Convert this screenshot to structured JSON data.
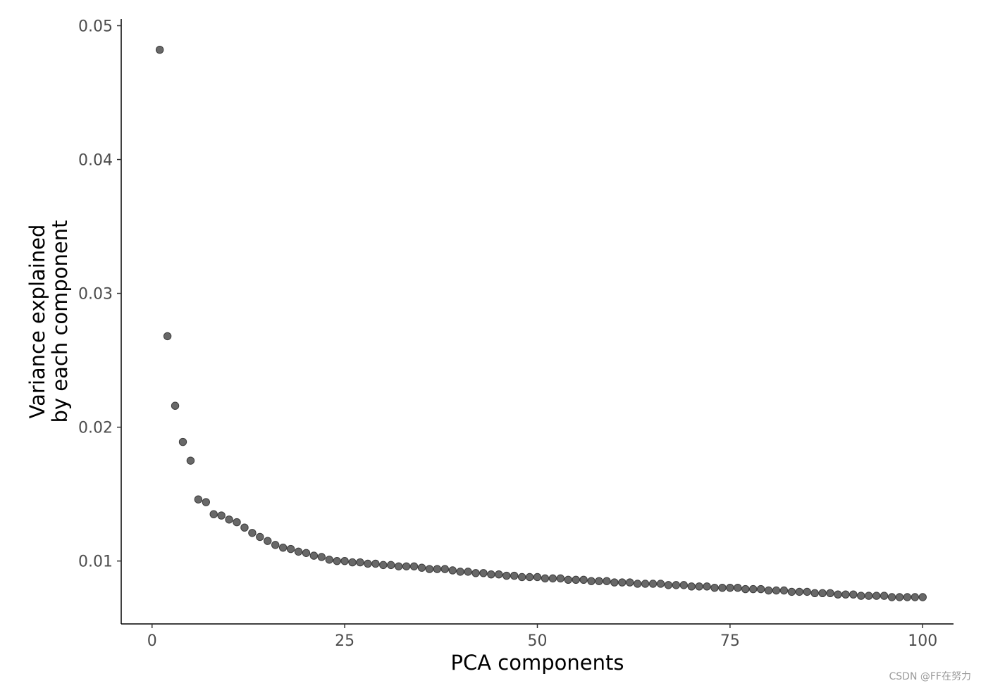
{
  "chart_data": {
    "type": "scatter",
    "xlabel": "PCA components",
    "ylabel_lines": [
      "Variance explained",
      "by each component"
    ],
    "xlim": [
      -4,
      104
    ],
    "ylim": [
      0.0053,
      0.0505
    ],
    "xticks": [
      0,
      25,
      50,
      75,
      100
    ],
    "xtick_labels": [
      "0",
      "25",
      "50",
      "75",
      "100"
    ],
    "yticks": [
      0.01,
      0.02,
      0.03,
      0.04,
      0.05
    ],
    "ytick_labels": [
      "0.01",
      "0.02",
      "0.03",
      "0.04",
      "0.05"
    ],
    "grid": false,
    "point_color": "#686868",
    "point_edge": "#3c3c3c",
    "x": [
      1,
      2,
      3,
      4,
      5,
      6,
      7,
      8,
      9,
      10,
      11,
      12,
      13,
      14,
      15,
      16,
      17,
      18,
      19,
      20,
      21,
      22,
      23,
      24,
      25,
      26,
      27,
      28,
      29,
      30,
      31,
      32,
      33,
      34,
      35,
      36,
      37,
      38,
      39,
      40,
      41,
      42,
      43,
      44,
      45,
      46,
      47,
      48,
      49,
      50,
      51,
      52,
      53,
      54,
      55,
      56,
      57,
      58,
      59,
      60,
      61,
      62,
      63,
      64,
      65,
      66,
      67,
      68,
      69,
      70,
      71,
      72,
      73,
      74,
      75,
      76,
      77,
      78,
      79,
      80,
      81,
      82,
      83,
      84,
      85,
      86,
      87,
      88,
      89,
      90,
      91,
      92,
      93,
      94,
      95,
      96,
      97,
      98,
      99,
      100
    ],
    "y": [
      0.0482,
      0.0268,
      0.0216,
      0.0189,
      0.0175,
      0.0146,
      0.0144,
      0.0135,
      0.0134,
      0.0131,
      0.0129,
      0.0125,
      0.0121,
      0.0118,
      0.0115,
      0.0112,
      0.011,
      0.0109,
      0.0107,
      0.0106,
      0.0104,
      0.0103,
      0.0101,
      0.01,
      0.01,
      0.0099,
      0.0099,
      0.0098,
      0.0098,
      0.0097,
      0.0097,
      0.0096,
      0.0096,
      0.0096,
      0.0095,
      0.0094,
      0.0094,
      0.0094,
      0.0093,
      0.0092,
      0.0092,
      0.0091,
      0.0091,
      0.009,
      0.009,
      0.0089,
      0.0089,
      0.0088,
      0.0088,
      0.0088,
      0.0087,
      0.0087,
      0.0087,
      0.0086,
      0.0086,
      0.0086,
      0.0085,
      0.0085,
      0.0085,
      0.0084,
      0.0084,
      0.0084,
      0.0083,
      0.0083,
      0.0083,
      0.0083,
      0.0082,
      0.0082,
      0.0082,
      0.0081,
      0.0081,
      0.0081,
      0.008,
      0.008,
      0.008,
      0.008,
      0.0079,
      0.0079,
      0.0079,
      0.0078,
      0.0078,
      0.0078,
      0.0077,
      0.0077,
      0.0077,
      0.0076,
      0.0076,
      0.0076,
      0.0075,
      0.0075,
      0.0075,
      0.0074,
      0.0074,
      0.0074,
      0.0074,
      0.0073,
      0.0073,
      0.0073,
      0.0073,
      0.0073
    ]
  },
  "watermark": "CSDN @FF在努力"
}
